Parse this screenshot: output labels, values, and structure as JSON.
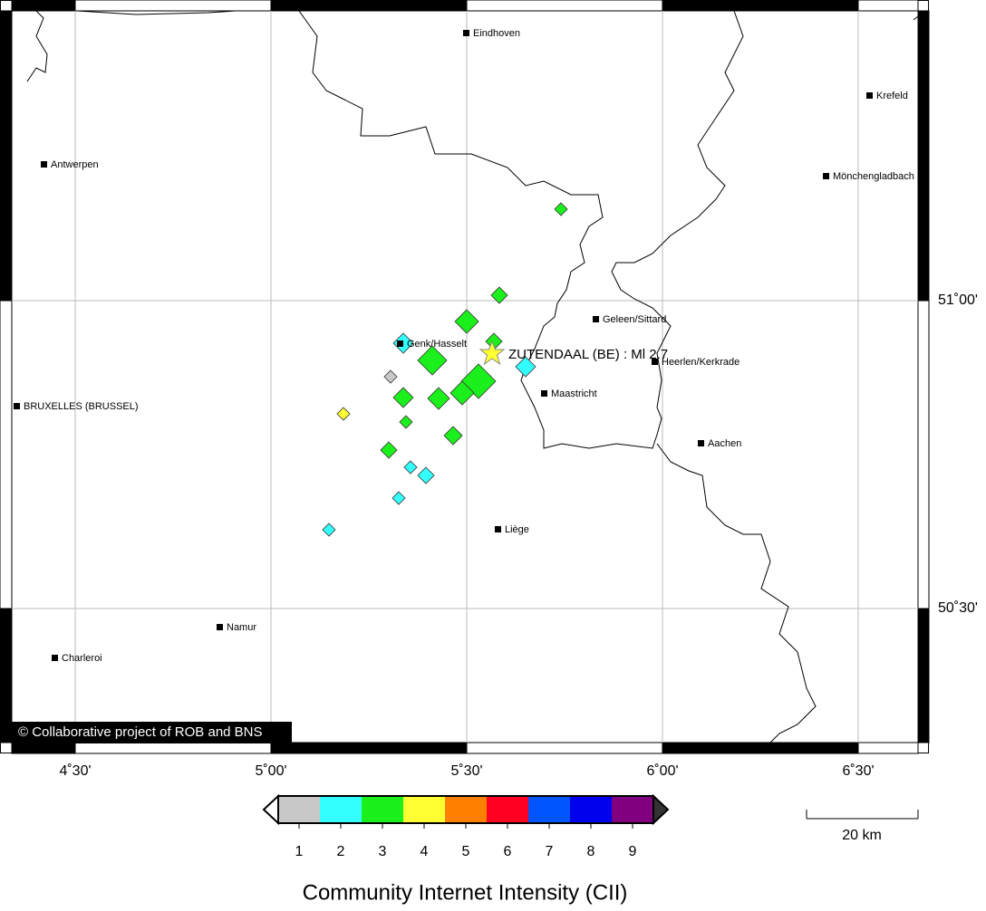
{
  "map": {
    "lon_labels": [
      "4˚30'",
      "5˚00'",
      "5˚30'",
      "6˚00'",
      "6˚30'"
    ],
    "lat_labels": [
      "51˚00'",
      "50˚30'"
    ],
    "cities": [
      "Eindhoven",
      "Krefeld",
      "Antwerpen",
      "Mönchengladbach",
      "Geleen/Sittard",
      "Genk/Hasselt",
      "Heerlen/Kerkrade",
      "Maastricht",
      "BRUXELLES (BRUSSEL)",
      "Aachen",
      "Liège",
      "Namur",
      "Charleroi"
    ],
    "event_label": "ZUTENDAAL (BE) : Ml 2.7",
    "credit": "© Collaborative project of ROB and BNS"
  },
  "legend": {
    "title": "Community Internet Intensity (CII)",
    "levels": [
      {
        "label": 1,
        "color": "#c8c8c8"
      },
      {
        "label": 2,
        "color": "#33ffff"
      },
      {
        "label": 3,
        "color": "#1cf01c"
      },
      {
        "label": 4,
        "color": "#ffff33"
      },
      {
        "label": 5,
        "color": "#ff8000"
      },
      {
        "label": 6,
        "color": "#ff0022"
      },
      {
        "label": 7,
        "color": "#0055ff"
      },
      {
        "label": 8,
        "color": "#0000ee"
      },
      {
        "label": 9,
        "color": "#800080"
      }
    ]
  },
  "scale_bar": {
    "label": "20 km"
  }
}
